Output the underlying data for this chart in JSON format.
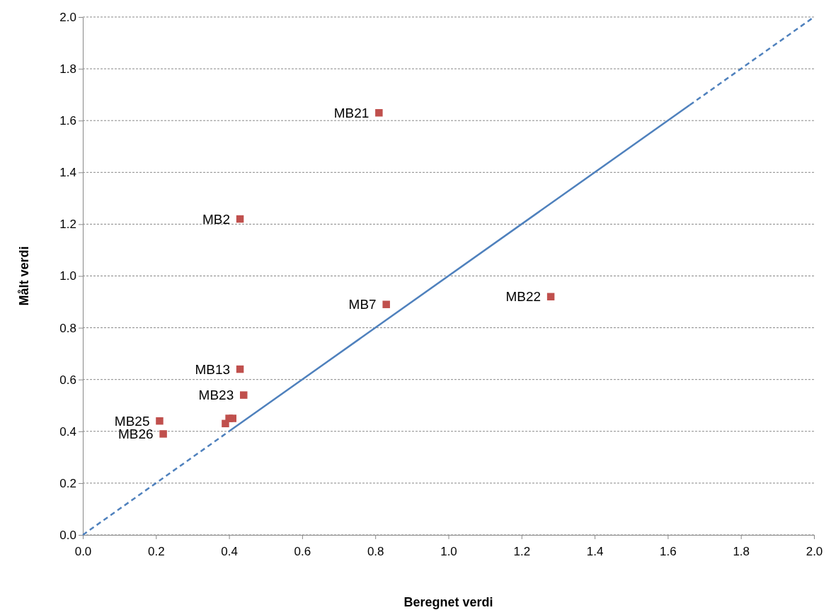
{
  "chart_data": {
    "type": "scatter",
    "xlabel": "Beregnet verdi",
    "ylabel": "Målt verdi",
    "xlim": [
      0,
      2
    ],
    "ylim": [
      0,
      2
    ],
    "xticks": [
      {
        "value": 0,
        "label": "0.0"
      },
      {
        "value": 0.2,
        "label": "0.2"
      },
      {
        "value": 0.4,
        "label": "0.4"
      },
      {
        "value": 0.6,
        "label": "0.6"
      },
      {
        "value": 0.8,
        "label": "0.8"
      },
      {
        "value": 1,
        "label": "1.0"
      },
      {
        "value": 1.2,
        "label": "1.2"
      },
      {
        "value": 1.4,
        "label": "1.4"
      },
      {
        "value": 1.6,
        "label": "1.6"
      },
      {
        "value": 1.8,
        "label": "1.8"
      },
      {
        "value": 2,
        "label": "2.0"
      }
    ],
    "yticks": [
      {
        "value": 0,
        "label": "0.0"
      },
      {
        "value": 0.2,
        "label": "0.2"
      },
      {
        "value": 0.4,
        "label": "0.4"
      },
      {
        "value": 0.6,
        "label": "0.6"
      },
      {
        "value": 0.8,
        "label": "0.8"
      },
      {
        "value": 1,
        "label": "1.0"
      },
      {
        "value": 1.2,
        "label": "1.2"
      },
      {
        "value": 1.4,
        "label": "1.4"
      },
      {
        "value": 1.6,
        "label": "1.6"
      },
      {
        "value": 1.8,
        "label": "1.8"
      },
      {
        "value": 2,
        "label": "2.0"
      }
    ],
    "grid": "y",
    "series": [
      {
        "type": "line",
        "color": "#4f81bd",
        "line_style": "dashed",
        "marker": "none",
        "x": [
          0,
          0.4
        ],
        "values": [
          0,
          0.4
        ]
      },
      {
        "type": "line",
        "color": "#4f81bd",
        "line_style": "solid",
        "marker": "none",
        "x": [
          0.4,
          1.66
        ],
        "values": [
          0.4,
          1.66
        ]
      },
      {
        "type": "line",
        "color": "#4f81bd",
        "line_style": "dashed",
        "marker": "none",
        "x": [
          1.66,
          2
        ],
        "values": [
          1.66,
          2
        ]
      },
      {
        "color": "#c0504d",
        "marker": "square",
        "x": [
          0.81,
          0.43,
          0.83,
          1.28,
          0.43,
          0.44,
          0.21,
          0.22,
          0.4,
          0.41,
          0.39
        ],
        "values": [
          1.63,
          1.22,
          0.89,
          0.92,
          0.64,
          0.54,
          0.44,
          0.39,
          0.45,
          0.45,
          0.43
        ]
      }
    ],
    "annotations": [
      {
        "text": "MB21",
        "x": 0.81,
        "y": 1.63
      },
      {
        "text": "MB2",
        "x": 0.43,
        "y": 1.22
      },
      {
        "text": "MB7",
        "x": 0.83,
        "y": 0.89
      },
      {
        "text": "MB22",
        "x": 1.28,
        "y": 0.92
      },
      {
        "text": "MB13",
        "x": 0.43,
        "y": 0.64
      },
      {
        "text": "MB23",
        "x": 0.44,
        "y": 0.54
      },
      {
        "text": "MB25",
        "x": 0.21,
        "y": 0.44
      },
      {
        "text": "MB26",
        "x": 0.22,
        "y": 0.39
      }
    ]
  }
}
